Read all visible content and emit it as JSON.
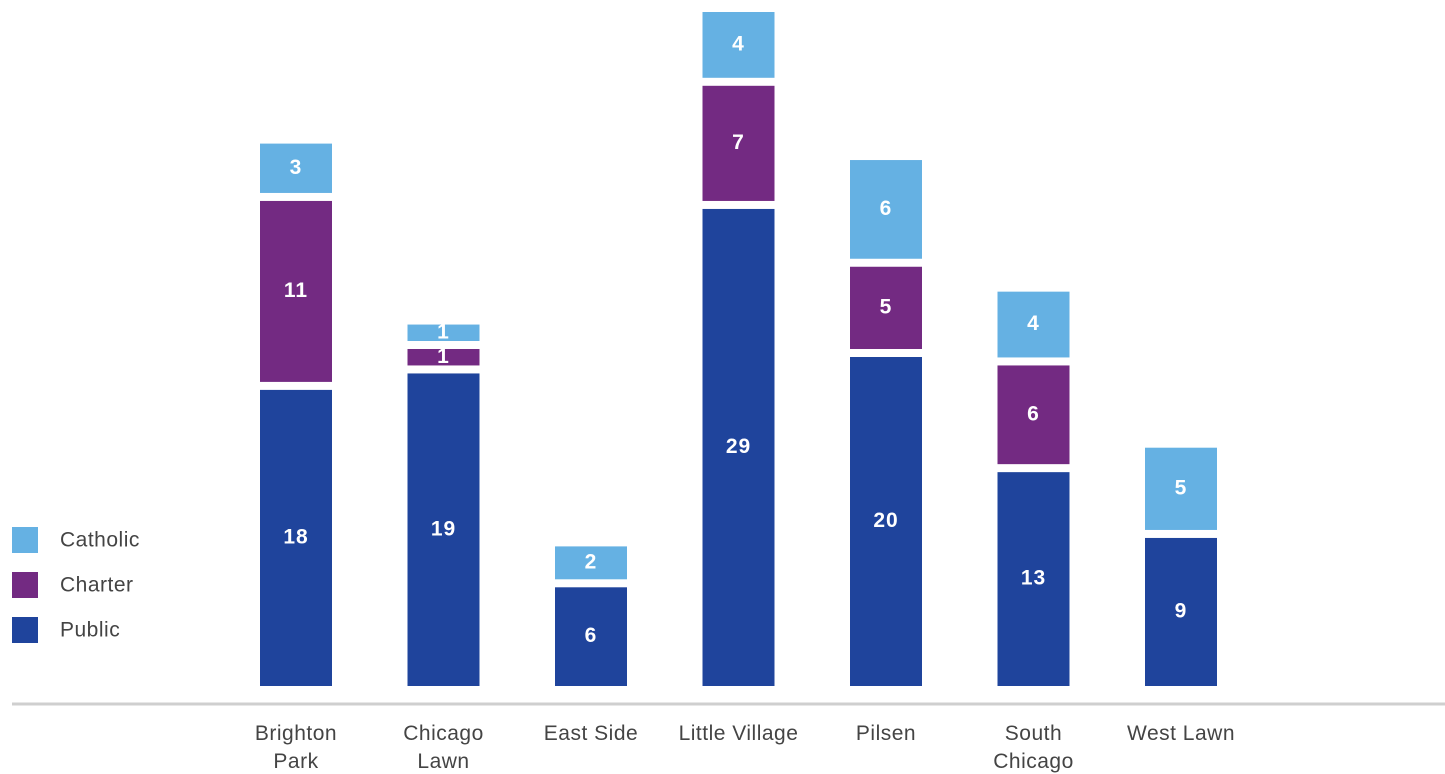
{
  "chart_data": {
    "type": "stacked_bar",
    "categories": [
      "Brighton Park",
      "Chicago Lawn",
      "East Side",
      "Little Village",
      "Pilsen",
      "South Chicago",
      "West Lawn"
    ],
    "series": [
      {
        "name": "Public",
        "color": "#1f449c",
        "values": [
          18,
          19,
          6,
          29,
          20,
          13,
          9
        ]
      },
      {
        "name": "Charter",
        "color": "#732a82",
        "values": [
          11,
          1,
          null,
          7,
          5,
          6,
          null
        ]
      },
      {
        "name": "Catholic",
        "color": "#65b1e3",
        "values": [
          3,
          1,
          2,
          4,
          6,
          4,
          5
        ]
      }
    ],
    "legend": "left",
    "grid": false
  }
}
